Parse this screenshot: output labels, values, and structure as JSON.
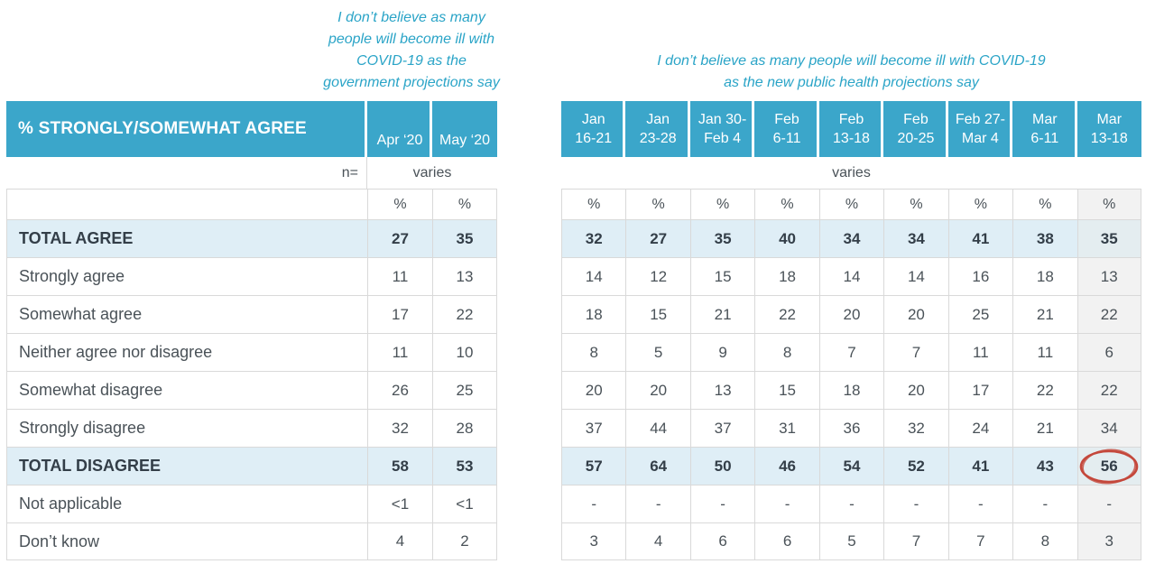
{
  "colors": {
    "header_teal": "#3BA6CA",
    "title_teal": "#2AA4C7",
    "highlight_row_blue": "#DFEEF6",
    "recent_column_tint": "#F2F2F2",
    "highlight_recent_tint": "#E4EDF0",
    "grid_border": "#D9D9D9",
    "body_text": "#4A5258",
    "emphasis_text": "#333E48",
    "circle_red": "#C4473B"
  },
  "chart_data": [
    {
      "type": "table",
      "title": "I don’t believe as many people will become ill with COVID-19 as the government projections say",
      "title_lines": [
        "I don’t believe as many",
        "people will become ill with",
        "COVID-19 as the",
        "government projections say"
      ],
      "header_label": "% STRONGLY/SOMEWHAT AGREE",
      "columns": [
        "Apr ‘20",
        "May ‘20"
      ],
      "n_row": {
        "label": "n=",
        "value": "varies"
      },
      "unit_row": [
        "%",
        "%"
      ],
      "rows": [
        {
          "label": "TOTAL AGREE",
          "values": [
            "27",
            "35"
          ],
          "emphasis": true
        },
        {
          "label": "Strongly agree",
          "values": [
            "11",
            "13"
          ]
        },
        {
          "label": "Somewhat agree",
          "values": [
            "17",
            "22"
          ]
        },
        {
          "label": "Neither agree nor disagree",
          "values": [
            "11",
            "10"
          ]
        },
        {
          "label": "Somewhat disagree",
          "values": [
            "26",
            "25"
          ]
        },
        {
          "label": "Strongly disagree",
          "values": [
            "32",
            "28"
          ]
        },
        {
          "label": "TOTAL DISAGREE",
          "values": [
            "58",
            "53"
          ],
          "emphasis": true
        },
        {
          "label": "Not applicable",
          "values": [
            "<1",
            "<1"
          ]
        },
        {
          "label": "Don’t know",
          "values": [
            "4",
            "2"
          ]
        }
      ]
    },
    {
      "type": "table",
      "title": "I don’t believe as many people will become ill with COVID-19 as the new public health projections say",
      "title_lines": [
        "I don’t believe as many people will become ill with COVID-19",
        "as the new public health projections say"
      ],
      "columns": [
        [
          "Jan",
          "16-21"
        ],
        [
          "Jan",
          "23-28"
        ],
        [
          "Jan 30-",
          "Feb 4"
        ],
        [
          "Feb",
          "6-11"
        ],
        [
          "Feb",
          "13-18"
        ],
        [
          "Feb",
          "20-25"
        ],
        [
          "Feb 27-",
          "Mar 4"
        ],
        [
          "Mar",
          "6-11"
        ],
        [
          "Mar",
          "13-18"
        ]
      ],
      "n_row": {
        "value": "varies"
      },
      "unit_row": [
        "%",
        "%",
        "%",
        "%",
        "%",
        "%",
        "%",
        "%",
        "%"
      ],
      "rows": [
        {
          "label": "TOTAL AGREE",
          "values": [
            "32",
            "27",
            "35",
            "40",
            "34",
            "34",
            "41",
            "38",
            "35"
          ],
          "emphasis": true
        },
        {
          "label": "Strongly agree",
          "values": [
            "14",
            "12",
            "15",
            "18",
            "14",
            "14",
            "16",
            "18",
            "13"
          ]
        },
        {
          "label": "Somewhat agree",
          "values": [
            "18",
            "15",
            "21",
            "22",
            "20",
            "20",
            "25",
            "21",
            "22"
          ]
        },
        {
          "label": "Neither agree nor disagree",
          "values": [
            "8",
            "5",
            "9",
            "8",
            "7",
            "7",
            "11",
            "11",
            "6"
          ]
        },
        {
          "label": "Somewhat disagree",
          "values": [
            "20",
            "20",
            "13",
            "15",
            "18",
            "20",
            "17",
            "22",
            "22"
          ]
        },
        {
          "label": "Strongly disagree",
          "values": [
            "37",
            "44",
            "37",
            "31",
            "36",
            "32",
            "24",
            "21",
            "34"
          ]
        },
        {
          "label": "TOTAL DISAGREE",
          "values": [
            "57",
            "64",
            "50",
            "46",
            "54",
            "52",
            "41",
            "43",
            "56"
          ],
          "emphasis": true,
          "circled_index": 8
        },
        {
          "label": "Not applicable",
          "values": [
            "-",
            "-",
            "-",
            "-",
            "-",
            "-",
            "-",
            "-",
            "-"
          ]
        },
        {
          "label": "Don’t know",
          "values": [
            "3",
            "4",
            "6",
            "6",
            "5",
            "7",
            "7",
            "8",
            "3"
          ]
        }
      ],
      "annotation": {
        "shape": "ellipse",
        "row": "TOTAL DISAGREE",
        "column": "Mar 13-18",
        "value": "56"
      }
    }
  ]
}
